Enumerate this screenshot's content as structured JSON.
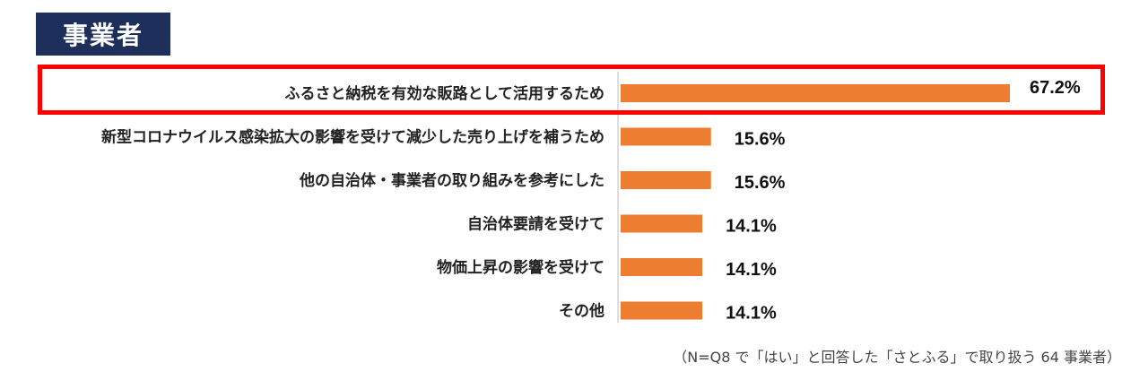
{
  "header": {
    "badge_label": "事業者"
  },
  "chart_data": {
    "type": "bar",
    "orientation": "horizontal",
    "categories": [
      "ふるさと納税を有効な販路として活用するため",
      "新型コロナウイルス感染拡大の影響を受けて減少した売り上げを補うため",
      "他の自治体・事業者の取り組みを参考にした",
      "自治体要請を受けて",
      "物価上昇の影響を受けて",
      "その他"
    ],
    "values": [
      67.2,
      15.6,
      15.6,
      14.1,
      14.1,
      14.1
    ],
    "value_labels": [
      "67.2%",
      "15.6%",
      "15.6%",
      "14.1%",
      "14.1%",
      "14.1%"
    ],
    "unit": "%",
    "xlim": [
      0,
      70
    ],
    "bar_color": "#ed7d31",
    "highlight_color": "#ff0000",
    "highlighted_category_index": 0,
    "grid": false,
    "legend": "none"
  },
  "footnote": "（N=Q8 で「はい」と回答した「さとふる」で取り扱う 64 事業者）"
}
